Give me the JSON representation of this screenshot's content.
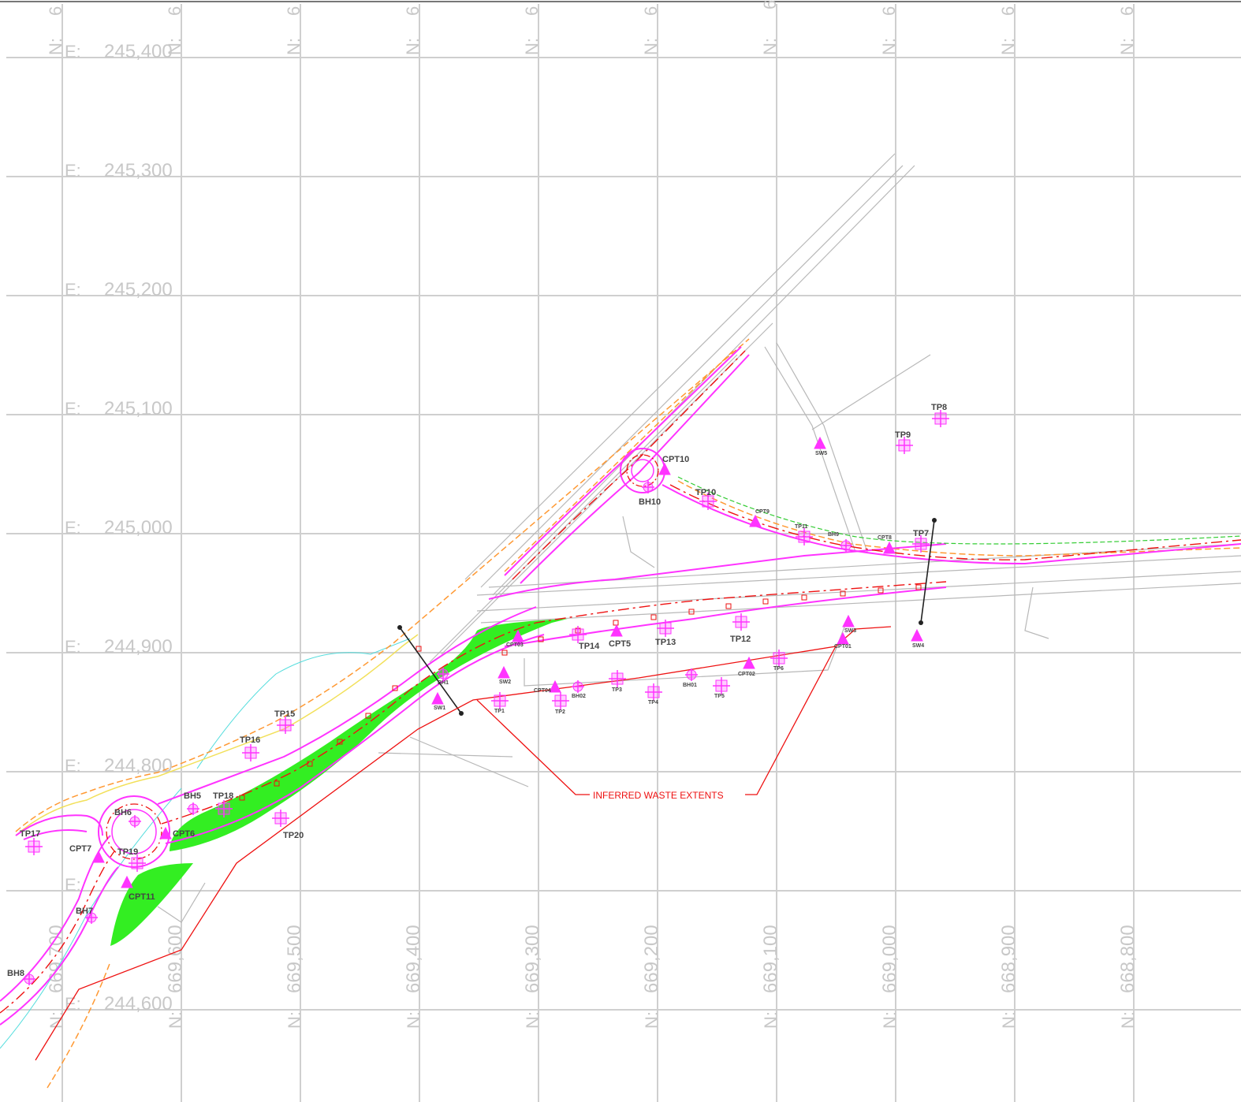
{
  "grid": {
    "easting_labels": [
      "245,400",
      "245,300",
      "245,200",
      "245,100",
      "245,000",
      "244,900",
      "244,800",
      "244,600"
    ],
    "easting_prefix": "E:",
    "northing_labels": [
      "669,700",
      "669,600",
      "669,500",
      "669,400",
      "669,300",
      "669,200",
      "669,100",
      "669,000",
      "668,900",
      "668,800"
    ],
    "northing_prefix": "N:",
    "top_clipped_digit": "6"
  },
  "annotation": {
    "waste_label": "INFERRED WASTE EXTENTS"
  },
  "colors": {
    "grid": "#cfcfcf",
    "traffic_island": "#33ee22",
    "investigation_points": "#ff33ff",
    "waste_boundary": "#ee1111",
    "existing_features": "#b8b8b8"
  },
  "investigation_points": {
    "trial_pits": [
      "TP7",
      "TP8",
      "TP9",
      "TP10",
      "TP11",
      "TP12",
      "TP13",
      "TP14",
      "TP15",
      "TP16",
      "TP17",
      "TP18",
      "TP19",
      "TP20",
      "TP1",
      "TP2",
      "TP3",
      "TP4",
      "TP5",
      "TP6"
    ],
    "boreholes": [
      "BH5",
      "BH6",
      "BH7",
      "BH8",
      "BH9",
      "BH10",
      "BH01",
      "BH02",
      "BH1"
    ],
    "cpt": [
      "CPT5",
      "CPT6",
      "CPT7",
      "CPT8",
      "CPT9",
      "CPT10",
      "CPT11",
      "CPT01",
      "CPT02",
      "CPT04",
      "CPT03"
    ],
    "other": [
      "SW2",
      "SW3",
      "SW4",
      "SW5",
      "SW1"
    ]
  }
}
